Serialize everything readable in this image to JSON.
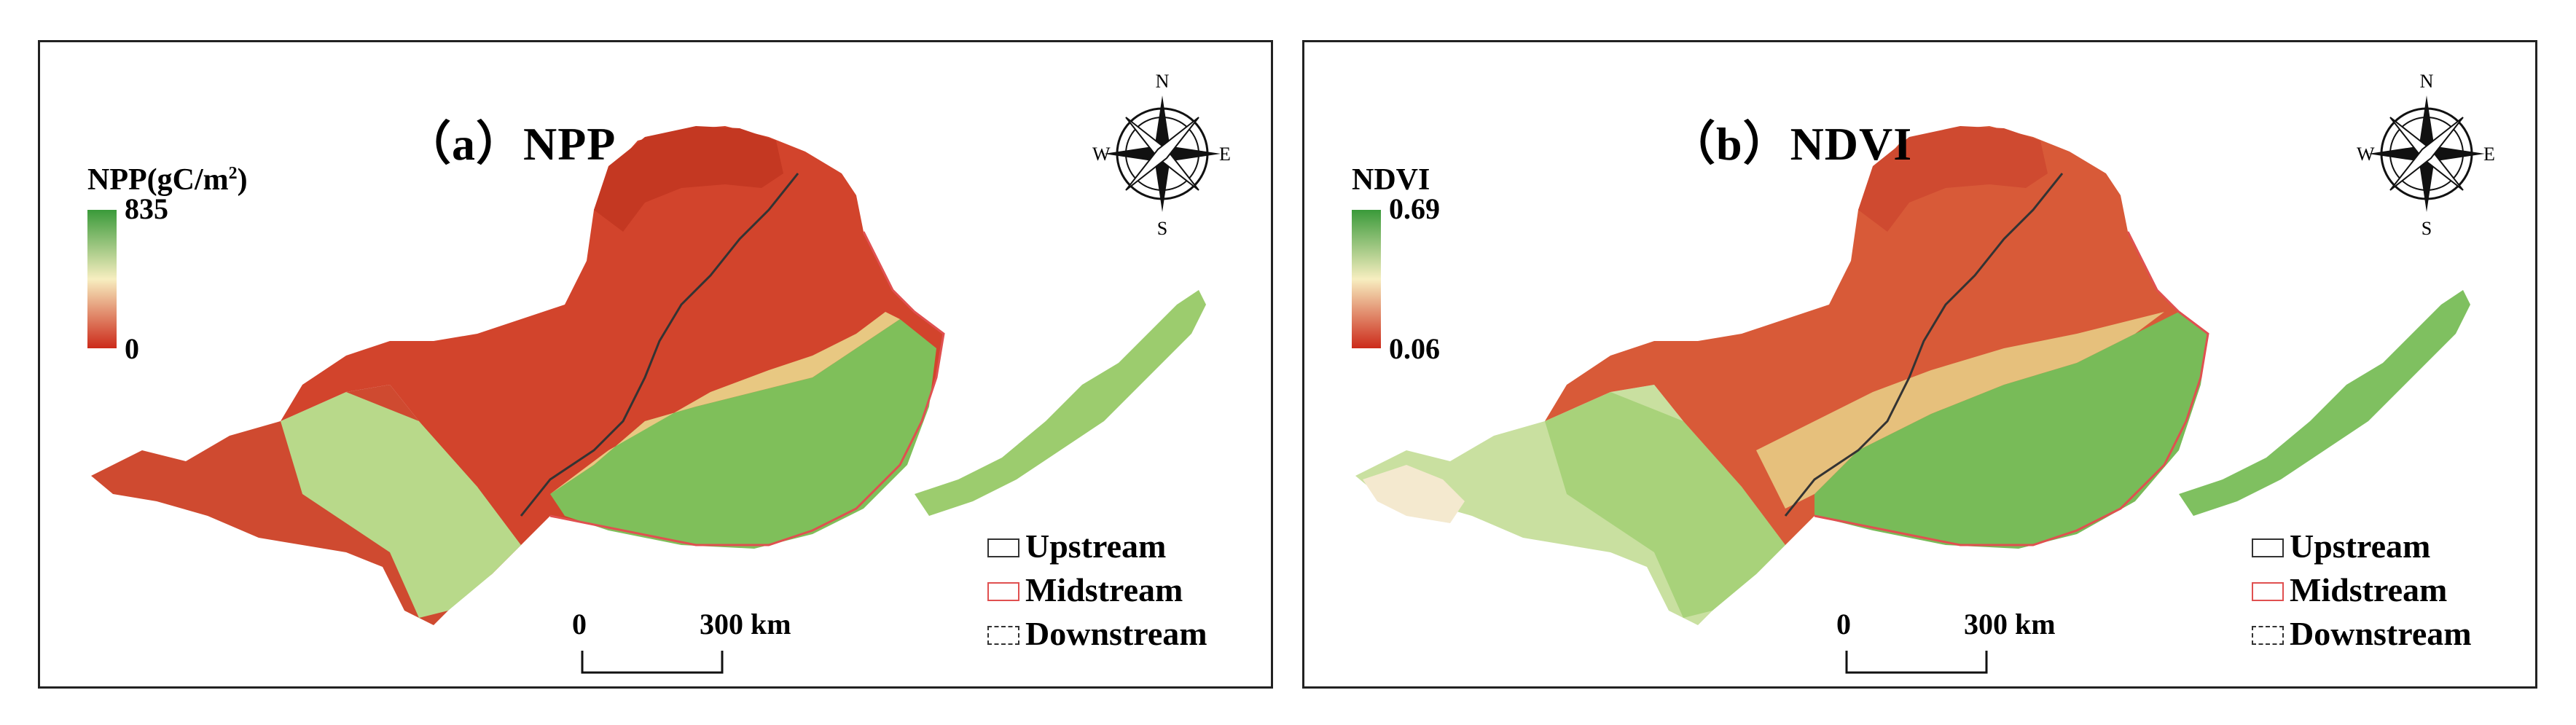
{
  "panels": [
    {
      "title": "（a）NPP",
      "legend_title": "NPP(gC/m",
      "legend_title_sup": "2",
      "legend_title_close": ")",
      "ramp_max": "835",
      "ramp_min": "0"
    },
    {
      "title": "（b）NDVI",
      "legend_title": "NDVI",
      "legend_title_sup": "",
      "legend_title_close": "",
      "ramp_max": "0.69",
      "ramp_min": "0.06"
    }
  ],
  "compass": {
    "n": "N",
    "s": "S",
    "e": "E",
    "w": "W"
  },
  "legend": {
    "upstream": "Upstream",
    "midstream": "Midstream",
    "downstream": "Downstream"
  },
  "scalebar": {
    "zero": "0",
    "end": "300 km"
  },
  "colors": {
    "ramp_high": "#3a9a3a",
    "ramp_mid": "#f7eec0",
    "ramp_low": "#cc2a1a",
    "upstream_border": "#333333",
    "midstream_border": "#e05050",
    "downstream_border": "#333333"
  }
}
